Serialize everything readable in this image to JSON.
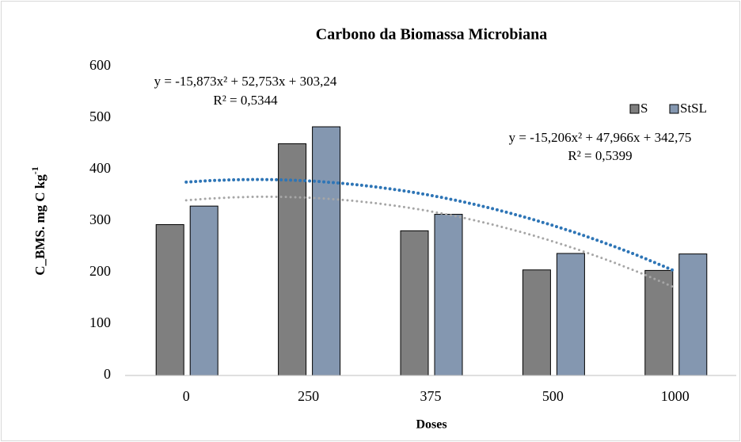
{
  "chart_data": {
    "type": "bar",
    "title": "Carbono da Biomassa Microbiana",
    "x_label": "Doses",
    "y_label": "C_BMS.  mg C kg",
    "y_label_sup": "-1",
    "categories": [
      "0",
      "250",
      "375",
      "500",
      "1000"
    ],
    "series": [
      {
        "name": "S",
        "color": "#7f7f7f",
        "values": [
          293,
          450,
          281,
          205,
          204
        ]
      },
      {
        "name": "StSL",
        "color": "#8497b0",
        "values": [
          329,
          483,
          313,
          237,
          236
        ]
      }
    ],
    "trendlines": [
      {
        "series": "S",
        "color": "#a6a6a6",
        "coefficients": [
          -15.873,
          52.753,
          303.24
        ],
        "equation": "y = -15,873x² + 52,753x + 303,24",
        "r2_label": "R² = 0,5344",
        "r2": 0.5344
      },
      {
        "series": "StSL",
        "color": "#2e75b6",
        "coefficients": [
          -15.206,
          47.966,
          342.75
        ],
        "equation": "y = -15,206x² + 47,966x + 342,75",
        "r2_label": "R² = 0,5399",
        "r2": 0.5399
      }
    ],
    "ylim": [
      0,
      600
    ],
    "yticks": [
      0,
      100,
      200,
      300,
      400,
      500,
      600
    ],
    "grid": false,
    "legend": "top-right"
  }
}
